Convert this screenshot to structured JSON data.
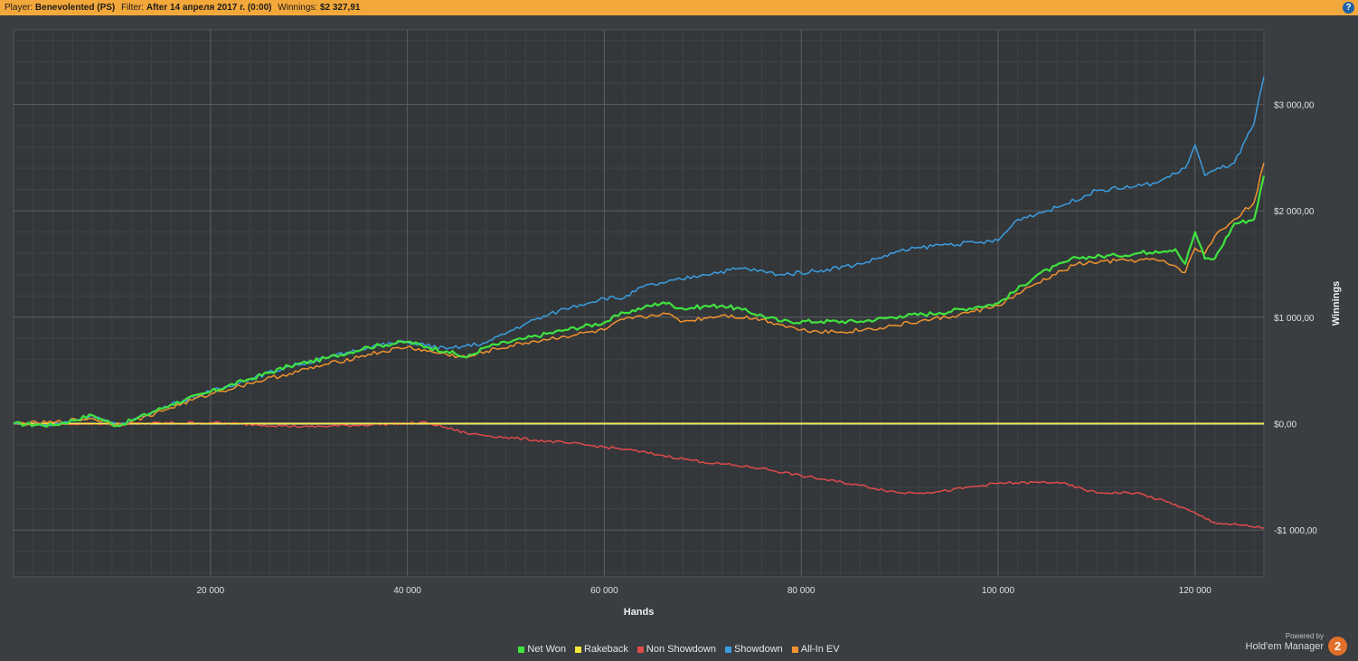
{
  "header": {
    "player_label": "Player:",
    "player_value": "Benevolented (PS)",
    "filter_label": "Filter:",
    "filter_value": "After 14 апреля 2017 г. (0:00)",
    "winnings_label": "Winnings:",
    "winnings_value": "$2 327,91",
    "help_glyph": "?"
  },
  "branding": {
    "powered_by": "Powered by",
    "product": "Hold'em Manager",
    "logo_text": "2"
  },
  "colors": {
    "background": "#3a3d41",
    "plot_background": "#34373a",
    "header_bar": "#f3a83b",
    "net_won": "#3fe33f",
    "rakeback": "#f2e83a",
    "non_showdown": "#e04a4a",
    "showdown": "#3a9de0",
    "all_in_ev": "#f0922e",
    "zero_line": "#ffffff"
  },
  "chart_data": {
    "type": "line",
    "title": "",
    "xlabel": "Hands",
    "ylabel": "Winnings",
    "xlim": [
      0,
      127000
    ],
    "ylim": [
      -1440,
      3700
    ],
    "x_ticks": [
      20000,
      40000,
      60000,
      80000,
      100000,
      120000
    ],
    "x_tick_labels": [
      "20 000",
      "40 000",
      "60 000",
      "80 000",
      "100 000",
      "120 000"
    ],
    "y_ticks": [
      -1000,
      0,
      1000,
      2000,
      3000
    ],
    "y_tick_labels": [
      "-$1 000,00",
      "$0,00",
      "$1 000,00",
      "$2 000,00",
      "$3 000,00"
    ],
    "grid": true,
    "legend_position": "bottom",
    "series": [
      {
        "name": "Net Won",
        "color": "#3fe33f",
        "x": [
          0,
          4000,
          8000,
          10500,
          12000,
          16000,
          20000,
          24000,
          28000,
          32000,
          36000,
          40000,
          42000,
          44000,
          46000,
          48000,
          52000,
          56000,
          60000,
          62000,
          64000,
          66000,
          68000,
          70000,
          72000,
          74000,
          78000,
          82000,
          86000,
          90000,
          94000,
          98000,
          100000,
          104000,
          108000,
          112000,
          116000,
          118000,
          119000,
          120000,
          121000,
          122000,
          124000,
          126000,
          127000
        ],
        "y": [
          0,
          -15,
          80,
          -20,
          30,
          180,
          300,
          420,
          540,
          620,
          720,
          770,
          720,
          680,
          620,
          720,
          800,
          880,
          950,
          1040,
          1090,
          1140,
          1080,
          1100,
          1110,
          1070,
          960,
          960,
          960,
          1010,
          1040,
          1100,
          1130,
          1400,
          1560,
          1580,
          1620,
          1640,
          1500,
          1800,
          1550,
          1550,
          1880,
          1920,
          2330
        ]
      },
      {
        "name": "Rakeback",
        "color": "#f2e83a",
        "x": [
          0,
          127000
        ],
        "y": [
          0,
          0
        ]
      },
      {
        "name": "Non Showdown",
        "color": "#e04a4a",
        "x": [
          0,
          10000,
          20000,
          30000,
          42000,
          46000,
          50000,
          56000,
          62000,
          66000,
          70000,
          76000,
          80000,
          86000,
          90000,
          94000,
          100000,
          106000,
          110000,
          114000,
          118000,
          122000,
          127000
        ],
        "y": [
          0,
          0,
          10,
          -30,
          10,
          -90,
          -130,
          -180,
          -240,
          -300,
          -360,
          -420,
          -490,
          -580,
          -650,
          -640,
          -560,
          -550,
          -650,
          -650,
          -760,
          -930,
          -980
        ]
      },
      {
        "name": "Showdown",
        "color": "#3a9de0",
        "x": [
          0,
          4000,
          8000,
          10500,
          12000,
          16000,
          20000,
          24000,
          28000,
          32000,
          36000,
          40000,
          44000,
          48000,
          52000,
          56000,
          60000,
          62000,
          64000,
          66000,
          70000,
          74000,
          78000,
          82000,
          86000,
          90000,
          94000,
          98000,
          100000,
          102000,
          106000,
          110000,
          114000,
          116000,
          118000,
          119000,
          120000,
          121000,
          122000,
          124000,
          126000,
          127000
        ],
        "y": [
          0,
          -15,
          80,
          -20,
          30,
          180,
          300,
          420,
          540,
          620,
          720,
          770,
          700,
          760,
          940,
          1080,
          1180,
          1180,
          1290,
          1320,
          1400,
          1460,
          1400,
          1440,
          1500,
          1620,
          1680,
          1700,
          1720,
          1920,
          2030,
          2190,
          2230,
          2260,
          2350,
          2400,
          2620,
          2330,
          2380,
          2450,
          2820,
          3260
        ]
      },
      {
        "name": "All-In EV",
        "color": "#f0922e",
        "x": [
          0,
          4000,
          8000,
          10500,
          12000,
          16000,
          20000,
          24000,
          28000,
          32000,
          36000,
          40000,
          42000,
          44000,
          46000,
          48000,
          52000,
          56000,
          60000,
          62000,
          64000,
          66000,
          68000,
          72000,
          76000,
          80000,
          84000,
          88000,
          92000,
          96000,
          100000,
          104000,
          108000,
          112000,
          116000,
          118000,
          119000,
          120000,
          121000,
          122000,
          124000,
          126000,
          127000
        ],
        "y": [
          0,
          10,
          50,
          -10,
          20,
          150,
          280,
          380,
          470,
          560,
          650,
          720,
          680,
          650,
          620,
          680,
          760,
          820,
          880,
          980,
          1000,
          1040,
          960,
          1020,
          980,
          880,
          860,
          900,
          960,
          1020,
          1110,
          1320,
          1500,
          1530,
          1540,
          1480,
          1420,
          1650,
          1600,
          1760,
          1920,
          2080,
          2450
        ]
      }
    ]
  }
}
